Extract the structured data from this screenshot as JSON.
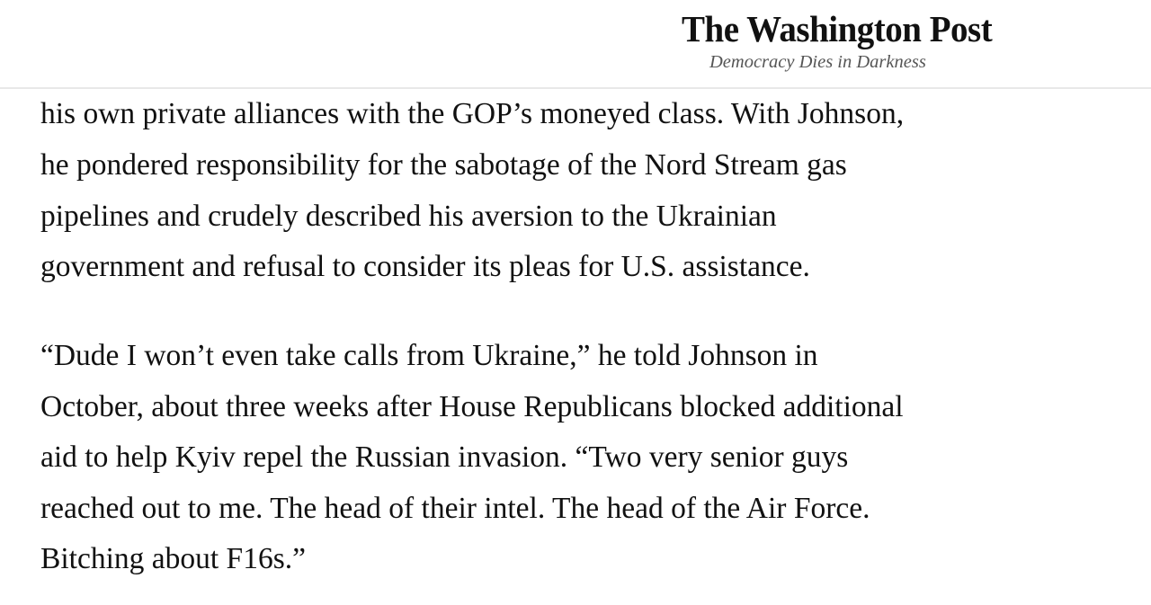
{
  "header": {
    "logo": "The Washington Post",
    "tagline": "Democracy Dies in Darkness"
  },
  "article": {
    "paragraphs": [
      {
        "lines": [
          "his own private alliances with the GOP’s moneyed class. With Johnson,",
          "he pondered responsibility for the sabotage of the Nord Stream gas",
          "pipelines and crudely described his aversion to the Ukrainian",
          "government and refusal to consider its pleas for U.S. assistance."
        ]
      },
      {
        "lines": [
          "“Dude I won’t even take calls from Ukraine,” he told Johnson in",
          "October, about three weeks after House Republicans blocked additional",
          "aid to help Kyiv repel the Russian invasion. “Two very senior guys",
          "reached out to me. The head of their intel. The head of the Air Force.",
          "Bitching about F16s.”"
        ]
      }
    ]
  }
}
